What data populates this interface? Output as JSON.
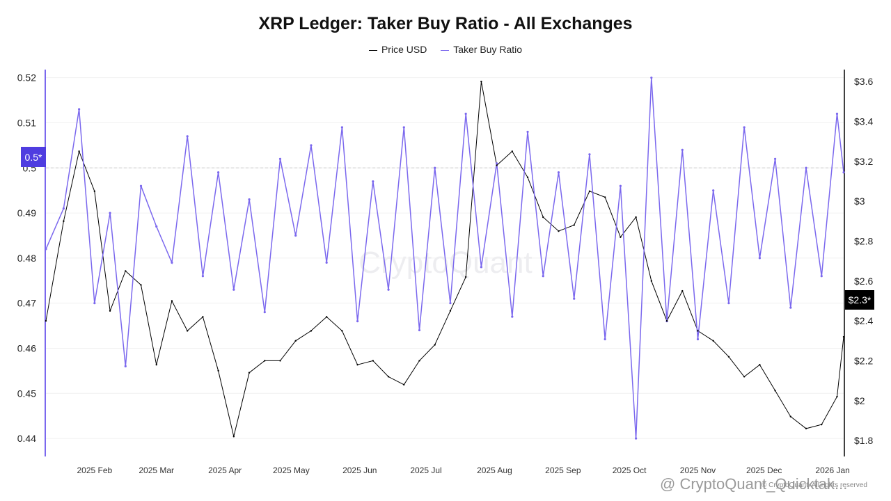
{
  "title": "XRP Ledger: Taker Buy Ratio - All Exchanges",
  "legend": [
    {
      "label": "Price USD",
      "color": "#000000"
    },
    {
      "label": "Taker Buy Ratio",
      "color": "#7b68ee"
    }
  ],
  "watermark": "CryptoQuant",
  "footer_watermark": "@ CryptoQuant_Quicktak...",
  "copyright": "© CryptoQuant. All rights reserved",
  "colors": {
    "ratio": "#7b68ee",
    "price": "#000000",
    "left_badge": "#4f3de0",
    "right_badge": "#000000"
  },
  "chart_data": {
    "type": "line",
    "title": "XRP Ledger: Taker Buy Ratio - All Exchanges",
    "x_range": [
      "2025-01-10",
      "2026-01-06"
    ],
    "x_ticks": [
      "2025 Feb",
      "2025 Mar",
      "2025 Apr",
      "2025 May",
      "2025 Jun",
      "2025 Jul",
      "2025 Aug",
      "2025 Sep",
      "2025 Oct",
      "2025 Nov",
      "2025 Dec",
      "2026 Jan"
    ],
    "y_left": {
      "ticks": [
        "0.52",
        "0.51",
        "0.5",
        "0.49",
        "0.48",
        "0.47",
        "0.46",
        "0.45",
        "0.44"
      ],
      "range": [
        0.436,
        0.5218
      ],
      "reference_line": 0.5,
      "badge": "0.5*"
    },
    "y_right": {
      "ticks": [
        "$3.6",
        "$3.4",
        "$3.2",
        "$3",
        "$2.8",
        "$2.6",
        "$2.4",
        "$2.2",
        "$2",
        "$1.8"
      ],
      "range": [
        1.72,
        3.66
      ],
      "badge": "$2.3*"
    },
    "grid": "horizontal",
    "legend_placement": "top-center",
    "series": [
      {
        "name": "Taker Buy Ratio",
        "axis": "left",
        "x": [
          "2025-01-10",
          "2025-01-18",
          "2025-01-25",
          "2025-02-01",
          "2025-02-08",
          "2025-02-15",
          "2025-02-22",
          "2025-03-01",
          "2025-03-08",
          "2025-03-15",
          "2025-03-22",
          "2025-03-29",
          "2025-04-05",
          "2025-04-12",
          "2025-04-19",
          "2025-04-26",
          "2025-05-03",
          "2025-05-10",
          "2025-05-17",
          "2025-05-24",
          "2025-05-31",
          "2025-06-07",
          "2025-06-14",
          "2025-06-21",
          "2025-06-28",
          "2025-07-05",
          "2025-07-12",
          "2025-07-19",
          "2025-07-26",
          "2025-08-02",
          "2025-08-09",
          "2025-08-16",
          "2025-08-23",
          "2025-08-30",
          "2025-09-06",
          "2025-09-13",
          "2025-09-20",
          "2025-09-27",
          "2025-10-04",
          "2025-10-11",
          "2025-10-18",
          "2025-10-25",
          "2025-11-01",
          "2025-11-08",
          "2025-11-15",
          "2025-11-22",
          "2025-11-29",
          "2025-12-06",
          "2025-12-13",
          "2025-12-20",
          "2025-12-27",
          "2026-01-03",
          "2026-01-06"
        ],
        "values": [
          0.482,
          0.491,
          0.513,
          0.47,
          0.49,
          0.456,
          0.496,
          0.487,
          0.479,
          0.507,
          0.476,
          0.499,
          0.473,
          0.493,
          0.468,
          0.502,
          0.485,
          0.505,
          0.479,
          0.509,
          0.466,
          0.497,
          0.473,
          0.509,
          0.464,
          0.5,
          0.47,
          0.512,
          0.478,
          0.501,
          0.467,
          0.508,
          0.476,
          0.499,
          0.471,
          0.503,
          0.462,
          0.496,
          0.44,
          0.52,
          0.466,
          0.504,
          0.462,
          0.495,
          0.47,
          0.509,
          0.48,
          0.502,
          0.469,
          0.5,
          0.476,
          0.512,
          0.499
        ]
      },
      {
        "name": "Price USD",
        "axis": "right",
        "x": [
          "2025-01-10",
          "2025-01-18",
          "2025-01-25",
          "2025-02-01",
          "2025-02-08",
          "2025-02-15",
          "2025-02-22",
          "2025-03-01",
          "2025-03-08",
          "2025-03-15",
          "2025-03-22",
          "2025-03-29",
          "2025-04-05",
          "2025-04-12",
          "2025-04-19",
          "2025-04-26",
          "2025-05-03",
          "2025-05-10",
          "2025-05-17",
          "2025-05-24",
          "2025-05-31",
          "2025-06-07",
          "2025-06-14",
          "2025-06-21",
          "2025-06-28",
          "2025-07-05",
          "2025-07-12",
          "2025-07-19",
          "2025-07-26",
          "2025-08-02",
          "2025-08-09",
          "2025-08-16",
          "2025-08-23",
          "2025-08-30",
          "2025-09-06",
          "2025-09-13",
          "2025-09-20",
          "2025-09-27",
          "2025-10-04",
          "2025-10-11",
          "2025-10-18",
          "2025-10-25",
          "2025-11-01",
          "2025-11-08",
          "2025-11-15",
          "2025-11-22",
          "2025-11-29",
          "2025-12-06",
          "2025-12-13",
          "2025-12-20",
          "2025-12-27",
          "2026-01-03",
          "2026-01-06"
        ],
        "values": [
          2.4,
          2.9,
          3.25,
          3.05,
          2.45,
          2.65,
          2.58,
          2.18,
          2.5,
          2.35,
          2.42,
          2.15,
          1.82,
          2.14,
          2.2,
          2.2,
          2.3,
          2.35,
          2.42,
          2.35,
          2.18,
          2.2,
          2.12,
          2.08,
          2.2,
          2.28,
          2.45,
          2.62,
          3.6,
          3.18,
          3.25,
          3.12,
          2.92,
          2.85,
          2.88,
          3.05,
          3.02,
          2.82,
          2.92,
          2.6,
          2.4,
          2.55,
          2.35,
          2.3,
          2.22,
          2.12,
          2.18,
          2.05,
          1.92,
          1.86,
          1.88,
          2.02,
          2.32
        ]
      }
    ]
  }
}
